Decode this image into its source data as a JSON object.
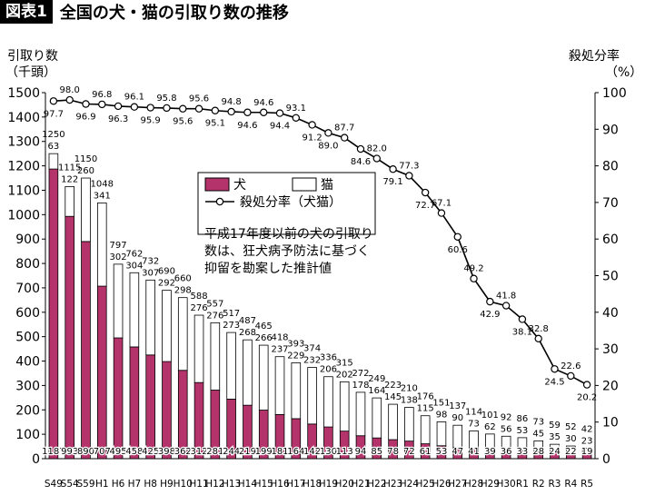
{
  "header": {
    "tag": "図表1",
    "title": "全国の犬・猫の引取り数の推移"
  },
  "chart_data": {
    "type": "bar",
    "title": "全国の犬・猫の引取り数の推移",
    "ylabel_left": "引取り数",
    "ylabel_left_unit": "（千頭）",
    "ylabel_right": "殺処分率",
    "ylabel_right_unit": "（%）",
    "ylim_left": [
      0,
      1500
    ],
    "ylim_right": [
      0,
      100
    ],
    "yticks_left": [
      "0",
      "100",
      "200",
      "300",
      "400",
      "500",
      "600",
      "700",
      "800",
      "900",
      "1000",
      "1100",
      "1200",
      "1300",
      "1400",
      "1500"
    ],
    "yticks_right": [
      "0",
      "10",
      "20",
      "30",
      "40",
      "50",
      "60",
      "70",
      "80",
      "90",
      "100"
    ],
    "categories": [
      "S49",
      "S54",
      "S59",
      "H1",
      "H6",
      "H7",
      "H8",
      "H9",
      "H10",
      "H11",
      "H12",
      "H13",
      "H14",
      "H15",
      "H16",
      "H17",
      "H18",
      "H19",
      "H20",
      "H21",
      "H22",
      "H23",
      "H24",
      "H25",
      "H26",
      "H27",
      "H28",
      "H29",
      "H30",
      "R1",
      "R2",
      "R3",
      "R4",
      "R5"
    ],
    "dog": [
      1187,
      993,
      890,
      707,
      495,
      458,
      425,
      398,
      362,
      312,
      281,
      244,
      219,
      199,
      181,
      164,
      142,
      130,
      113,
      94,
      85,
      78,
      72,
      61,
      53,
      47,
      41,
      39,
      36,
      33,
      28,
      24,
      22,
      19
    ],
    "cat": [
      63,
      122,
      260,
      341,
      302,
      304,
      307,
      292,
      298,
      276,
      276,
      273,
      268,
      266,
      237,
      229,
      232,
      206,
      202,
      178,
      164,
      145,
      138,
      115,
      98,
      90,
      73,
      62,
      56,
      53,
      45,
      35,
      30,
      23
    ],
    "total": [
      1250,
      1115,
      1150,
      1048,
      797,
      762,
      732,
      690,
      660,
      588,
      557,
      517,
      487,
      465,
      418,
      393,
      374,
      336,
      315,
      272,
      249,
      223,
      210,
      176,
      151,
      137,
      114,
      101,
      92,
      86,
      73,
      59,
      52,
      42
    ],
    "rate": [
      97.7,
      98.0,
      96.9,
      96.8,
      96.3,
      96.1,
      95.9,
      95.8,
      95.6,
      95.6,
      95.1,
      94.8,
      94.6,
      94.6,
      94.4,
      93.1,
      91.2,
      89.0,
      87.7,
      84.6,
      82.0,
      79.1,
      77.3,
      72.7,
      67.1,
      60.6,
      49.2,
      42.9,
      41.8,
      38.1,
      32.8,
      24.5,
      22.6,
      20.2
    ],
    "legend": {
      "dog": "犬",
      "cat": "猫",
      "rate": "殺処分率（犬猫）"
    },
    "annotation": [
      "平成17年度以前の犬の引取り",
      "数は、狂犬病予防法に基づく",
      "抑留を勘案した推計値"
    ],
    "colors": {
      "dog": "#b5336b",
      "cat": "#ffffff",
      "line": "#000000",
      "rate_marker": "#ffffff"
    },
    "grid": false,
    "legend_position": "upper-center"
  }
}
